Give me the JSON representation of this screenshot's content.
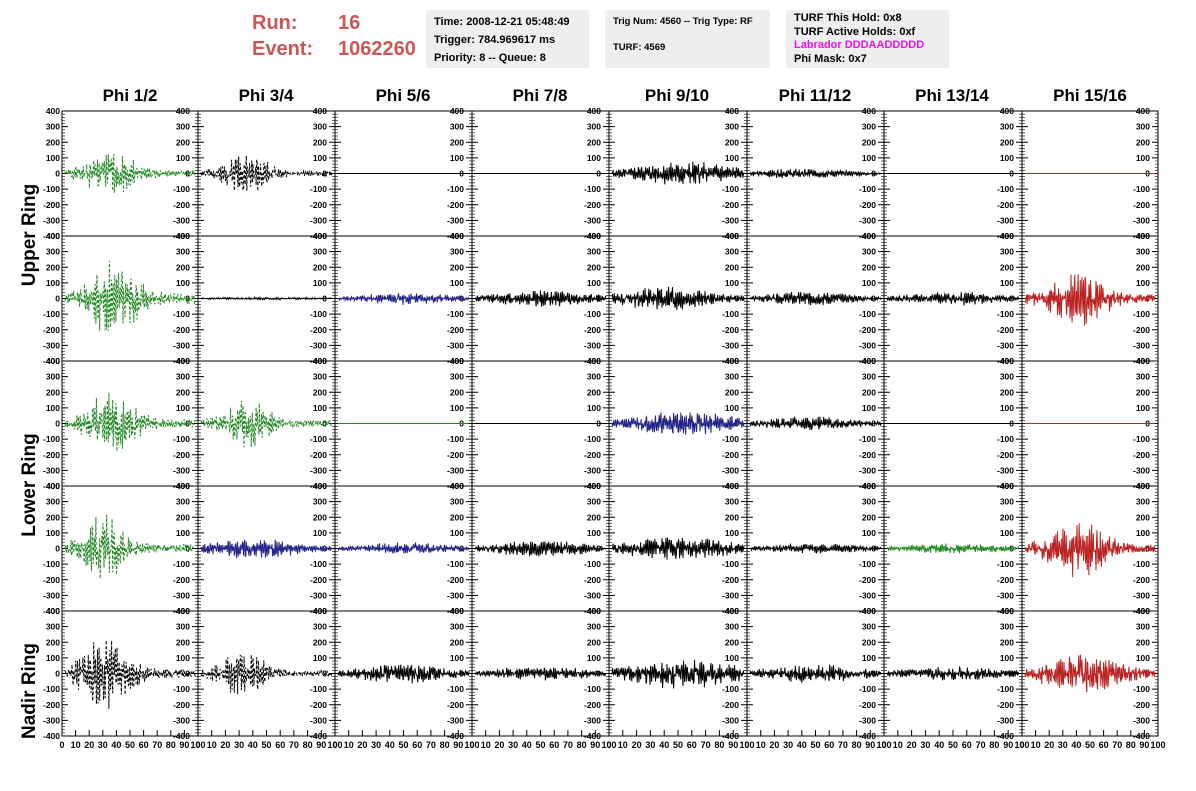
{
  "header": {
    "run_label": "Run:",
    "run_value": "16",
    "event_label": "Event:",
    "event_value": "1062260",
    "colors": {
      "run_event": "#cc5555",
      "labrador": "#ee11ee",
      "panel_bg": "#eeeeee"
    }
  },
  "info_time": {
    "time": "Time: 2008-12-21 05:48:49",
    "trigger": "Trigger: 784.969617 ms",
    "priority": "Priority: 8 -- Queue: 8"
  },
  "info_trig": {
    "trig": "Trig Num: 4560 -- Trig Type: RF",
    "turf": "TURF: 4569"
  },
  "info_turf": {
    "hold": "TURF This Hold: 0x8",
    "active": "TURF Active Holds: 0xf",
    "labrador": "Labrador DDDAADDDDD",
    "phimask": "Phi Mask: 0x7"
  },
  "columns": [
    "Phi 1/2",
    "Phi 3/4",
    "Phi 5/6",
    "Phi 7/8",
    "Phi 9/10",
    "Phi 11/12",
    "Phi 13/14",
    "Phi 15/16"
  ],
  "rings": [
    "Upper Ring",
    "Lower Ring",
    "Nadir Ring"
  ],
  "chart_data": {
    "type": "line",
    "grid": false,
    "xlim": [
      0,
      100
    ],
    "ylim": [
      -400,
      400
    ],
    "x_ticks": [
      0,
      10,
      20,
      30,
      40,
      50,
      60,
      70,
      80,
      90,
      100
    ],
    "y_ticks": [
      -400,
      -300,
      -200,
      -100,
      0,
      100,
      200,
      300,
      400
    ],
    "series_colors": {
      "black": "#000000",
      "green": "#228822",
      "blue": "#222288",
      "red": "#bb2222"
    },
    "panels": [
      [
        {
          "color": "green",
          "style": "dash",
          "amp": 110,
          "center": 35,
          "width": 22,
          "seed": 1
        },
        {
          "color": "black",
          "style": "dash",
          "amp": 110,
          "center": 35,
          "width": 18,
          "seed": 2
        },
        {
          "color": "black",
          "style": "flat",
          "amp": 0,
          "center": 50,
          "width": 30,
          "seed": 3
        },
        {
          "color": "black",
          "style": "flat",
          "amp": 0,
          "center": 50,
          "width": 30,
          "seed": 4
        },
        {
          "color": "black",
          "style": "solid",
          "amp": 60,
          "center": 55,
          "width": 45,
          "seed": 5
        },
        {
          "color": "black",
          "style": "solid",
          "amp": 25,
          "center": 40,
          "width": 40,
          "seed": 6
        },
        {
          "color": "black",
          "style": "flat",
          "amp": 0,
          "center": 50,
          "width": 30,
          "seed": 7
        },
        {
          "color": "red",
          "style": "flat",
          "amp": 0,
          "center": 50,
          "width": 30,
          "seed": 8
        }
      ],
      [
        {
          "color": "green",
          "style": "dash",
          "amp": 200,
          "center": 38,
          "width": 20,
          "seed": 9
        },
        {
          "color": "black",
          "style": "solid",
          "amp": 6,
          "center": 50,
          "width": 60,
          "seed": 10
        },
        {
          "color": "blue",
          "style": "solid",
          "amp": 30,
          "center": 50,
          "width": 40,
          "seed": 11
        },
        {
          "color": "black",
          "style": "solid",
          "amp": 40,
          "center": 50,
          "width": 45,
          "seed": 12
        },
        {
          "color": "black",
          "style": "solid",
          "amp": 60,
          "center": 40,
          "width": 40,
          "seed": 13
        },
        {
          "color": "black",
          "style": "solid",
          "amp": 35,
          "center": 45,
          "width": 40,
          "seed": 14
        },
        {
          "color": "black",
          "style": "solid",
          "amp": 35,
          "center": 50,
          "width": 40,
          "seed": 15
        },
        {
          "color": "red",
          "style": "solid",
          "amp": 140,
          "center": 40,
          "width": 25,
          "seed": 16
        }
      ],
      [
        {
          "color": "green",
          "style": "dash",
          "amp": 150,
          "center": 35,
          "width": 22,
          "seed": 17
        },
        {
          "color": "green",
          "style": "dash",
          "amp": 120,
          "center": 35,
          "width": 20,
          "seed": 18
        },
        {
          "color": "green",
          "style": "flat",
          "amp": 0,
          "center": 50,
          "width": 30,
          "seed": 19
        },
        {
          "color": "black",
          "style": "flat",
          "amp": 0,
          "center": 50,
          "width": 30,
          "seed": 20
        },
        {
          "color": "blue",
          "style": "solid",
          "amp": 60,
          "center": 55,
          "width": 45,
          "seed": 21
        },
        {
          "color": "black",
          "style": "solid",
          "amp": 35,
          "center": 45,
          "width": 40,
          "seed": 22
        },
        {
          "color": "black",
          "style": "flat",
          "amp": 0,
          "center": 50,
          "width": 30,
          "seed": 23
        },
        {
          "color": "red",
          "style": "flat",
          "amp": 0,
          "center": 50,
          "width": 30,
          "seed": 24
        }
      ],
      [
        {
          "color": "green",
          "style": "dash",
          "amp": 170,
          "center": 30,
          "width": 18,
          "seed": 25
        },
        {
          "color": "blue",
          "style": "solid",
          "amp": 50,
          "center": 40,
          "width": 40,
          "seed": 26
        },
        {
          "color": "blue",
          "style": "solid",
          "amp": 30,
          "center": 50,
          "width": 40,
          "seed": 27
        },
        {
          "color": "black",
          "style": "solid",
          "amp": 40,
          "center": 50,
          "width": 45,
          "seed": 28
        },
        {
          "color": "black",
          "style": "solid",
          "amp": 60,
          "center": 50,
          "width": 45,
          "seed": 29
        },
        {
          "color": "black",
          "style": "solid",
          "amp": 25,
          "center": 50,
          "width": 45,
          "seed": 30
        },
        {
          "color": "green",
          "style": "solid",
          "amp": 25,
          "center": 50,
          "width": 45,
          "seed": 31
        },
        {
          "color": "red",
          "style": "solid",
          "amp": 140,
          "center": 40,
          "width": 25,
          "seed": 32
        }
      ],
      [
        {
          "color": "black",
          "style": "dash",
          "amp": 170,
          "center": 30,
          "width": 22,
          "seed": 33
        },
        {
          "color": "black",
          "style": "dash",
          "amp": 110,
          "center": 32,
          "width": 20,
          "seed": 34
        },
        {
          "color": "black",
          "style": "solid",
          "amp": 50,
          "center": 50,
          "width": 40,
          "seed": 35
        },
        {
          "color": "black",
          "style": "solid",
          "amp": 35,
          "center": 50,
          "width": 45,
          "seed": 36
        },
        {
          "color": "black",
          "style": "solid",
          "amp": 80,
          "center": 55,
          "width": 45,
          "seed": 37
        },
        {
          "color": "black",
          "style": "solid",
          "amp": 45,
          "center": 50,
          "width": 45,
          "seed": 38
        },
        {
          "color": "black",
          "style": "solid",
          "amp": 35,
          "center": 50,
          "width": 45,
          "seed": 39
        },
        {
          "color": "red",
          "style": "solid",
          "amp": 100,
          "center": 45,
          "width": 35,
          "seed": 40
        }
      ]
    ]
  }
}
